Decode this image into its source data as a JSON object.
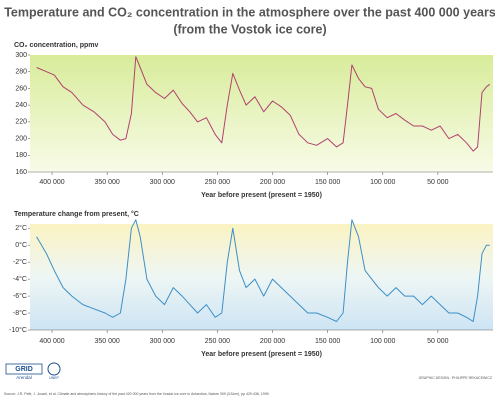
{
  "title": "Temperature and CO₂ concentration in the atmosphere over the past 400 000 years",
  "subtitle": "(from the Vostok ice core)",
  "footer": {
    "logo_1": "GRID",
    "logo_2": "Arendal",
    "logo_3": "UNEP",
    "credit": "GRAPHIC DESIGN : PHILIPPE REKACEWICZ",
    "source": "Source: J.R. Petit, J. Jouzel, et al. Climate and atmospheric history of the past 420 000 years from the Vostok ice core in Antarctica, Nature 399 (3JUne), pp 429-436, 1999."
  },
  "chart_data": [
    {
      "type": "line",
      "y_label": "CO₂ concentration, ppmv",
      "x_label": "Year before present (present = 1950)",
      "xlim": [
        420000,
        0
      ],
      "ylim": [
        160,
        300
      ],
      "yticks": [
        160,
        180,
        200,
        220,
        240,
        260,
        280,
        300
      ],
      "xticks": [
        {
          "value": 400000,
          "label": "400 000"
        },
        {
          "value": 350000,
          "label": "350 000"
        },
        {
          "value": 300000,
          "label": "300 000"
        },
        {
          "value": 250000,
          "label": "250 000"
        },
        {
          "value": 200000,
          "label": "200 000"
        },
        {
          "value": 150000,
          "label": "150 000"
        },
        {
          "value": 100000,
          "label": "100 000"
        },
        {
          "value": 50000,
          "label": "50 000"
        }
      ],
      "x": [
        414000,
        405000,
        398000,
        390000,
        382000,
        372000,
        362000,
        352000,
        345000,
        338000,
        333000,
        328000,
        324000,
        320000,
        314000,
        306000,
        298000,
        290000,
        282000,
        275000,
        268000,
        260000,
        252000,
        246000,
        241000,
        236000,
        230000,
        224000,
        216000,
        208000,
        200000,
        192000,
        184000,
        176000,
        168000,
        160000,
        150000,
        142000,
        136000,
        132000,
        128000,
        122000,
        116000,
        110000,
        104000,
        96000,
        88000,
        80000,
        72000,
        64000,
        56000,
        48000,
        40000,
        32000,
        24000,
        18000,
        14000,
        10000,
        6000,
        3000
      ],
      "series": [
        {
          "name": "CO₂",
          "color": "#b2416f",
          "values": [
            285,
            280,
            276,
            262,
            255,
            240,
            232,
            220,
            205,
            198,
            200,
            230,
            298,
            285,
            265,
            255,
            248,
            258,
            242,
            232,
            220,
            225,
            205,
            195,
            240,
            278,
            258,
            240,
            250,
            232,
            245,
            238,
            228,
            205,
            195,
            192,
            200,
            190,
            195,
            240,
            288,
            272,
            262,
            260,
            235,
            225,
            230,
            222,
            215,
            215,
            210,
            215,
            200,
            205,
            195,
            185,
            190,
            255,
            262,
            265
          ]
        }
      ]
    },
    {
      "type": "line",
      "y_label": "Temperature change from present, °C",
      "x_label": "Year before present (present = 1950)",
      "xlim": [
        420000,
        0
      ],
      "ylim": [
        -10,
        2.5
      ],
      "yticks": [
        {
          "value": 2,
          "label": "2°C"
        },
        {
          "value": 0,
          "label": "0°C"
        },
        {
          "value": -2,
          "label": "-2°C"
        },
        {
          "value": -4,
          "label": "-4°C"
        },
        {
          "value": -6,
          "label": "-6°C"
        },
        {
          "value": -8,
          "label": "-8°C"
        },
        {
          "value": -10,
          "label": "-10°C"
        }
      ],
      "xticks": [
        {
          "value": 400000,
          "label": "400 000"
        },
        {
          "value": 350000,
          "label": "350 000"
        },
        {
          "value": 300000,
          "label": "300 000"
        },
        {
          "value": 250000,
          "label": "250 000"
        },
        {
          "value": 200000,
          "label": "200 000"
        },
        {
          "value": 150000,
          "label": "150 000"
        },
        {
          "value": 100000,
          "label": "100 000"
        },
        {
          "value": 50000,
          "label": "50 000"
        }
      ],
      "x": [
        414000,
        405000,
        398000,
        390000,
        382000,
        372000,
        362000,
        352000,
        345000,
        338000,
        333000,
        328000,
        324000,
        320000,
        314000,
        306000,
        298000,
        290000,
        282000,
        275000,
        268000,
        260000,
        252000,
        246000,
        241000,
        236000,
        230000,
        224000,
        216000,
        208000,
        200000,
        192000,
        184000,
        176000,
        168000,
        160000,
        150000,
        142000,
        136000,
        132000,
        128000,
        122000,
        116000,
        110000,
        104000,
        96000,
        88000,
        80000,
        72000,
        64000,
        56000,
        48000,
        40000,
        32000,
        24000,
        18000,
        14000,
        10000,
        6000,
        3000
      ],
      "series": [
        {
          "name": "Temperature",
          "color": "#3d8fc6",
          "values": [
            1,
            -1,
            -3,
            -5,
            -6,
            -7,
            -7.5,
            -8,
            -8.5,
            -8,
            -4,
            2,
            3,
            1,
            -4,
            -6,
            -7,
            -5,
            -6,
            -7,
            -8,
            -7,
            -8.5,
            -8,
            -2,
            2,
            -3,
            -5,
            -4,
            -6,
            -4,
            -5,
            -6,
            -7,
            -8,
            -8,
            -8.5,
            -9,
            -8,
            -2,
            3,
            1,
            -3,
            -4,
            -5,
            -6,
            -5,
            -6,
            -6,
            -7,
            -6,
            -7,
            -8,
            -8,
            -8.5,
            -9,
            -6,
            -1,
            0,
            0
          ]
        }
      ]
    }
  ]
}
